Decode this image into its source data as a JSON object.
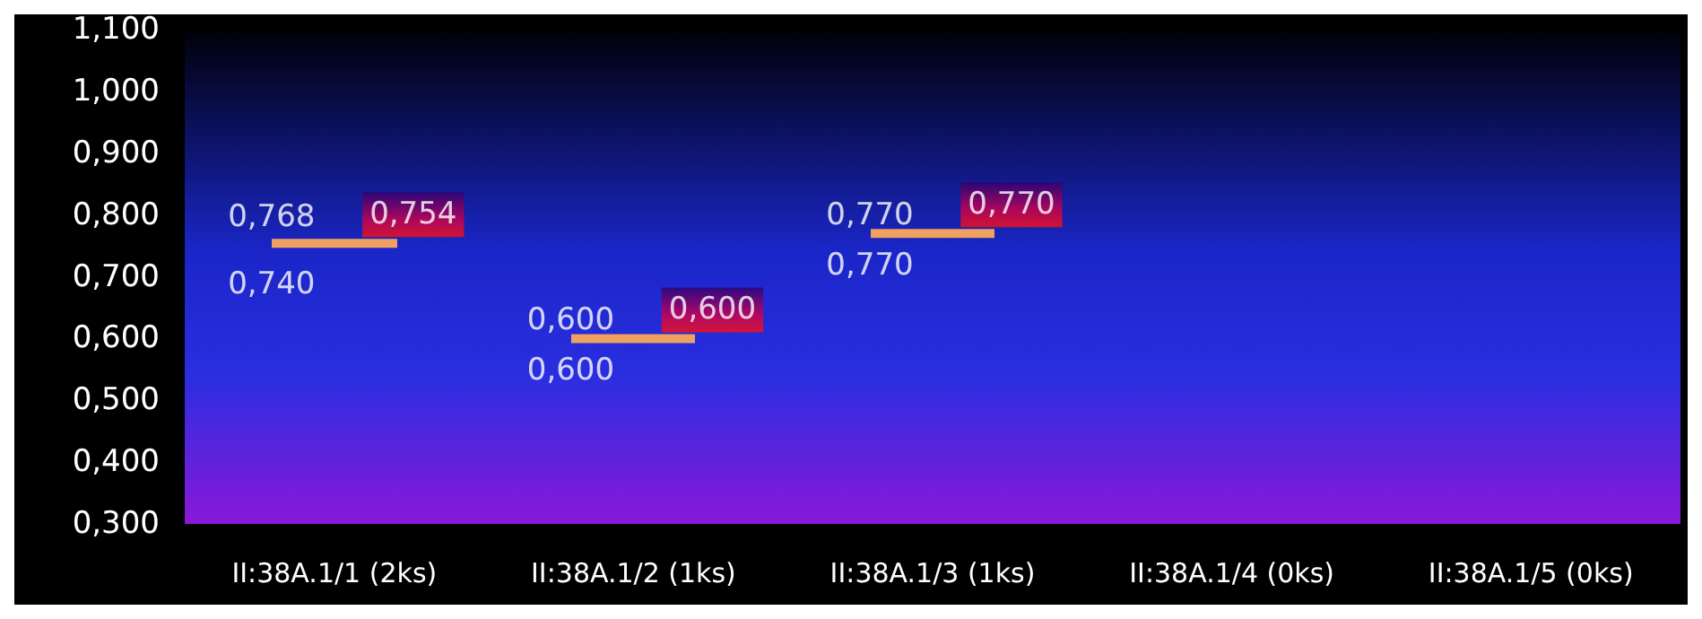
{
  "chart_data": {
    "type": "candlestick",
    "categories": [
      "II:38A.1/1 (2ks)",
      "II:38A.1/2 (1ks)",
      "II:38A.1/3 (1ks)",
      "II:38A.1/4 (0ks)",
      "II:38A.1/5 (0ks)"
    ],
    "ohlc": [
      [
        0.754,
        0.754,
        0.754,
        0.754
      ],
      [
        0.6,
        0.6,
        0.6,
        0.6
      ],
      [
        0.77,
        0.77,
        0.77,
        0.77
      ],
      null,
      null
    ],
    "color": "#f0a060",
    "value_labels": [
      "0,754",
      "0,600",
      "0,770",
      null,
      null
    ],
    "annotations": [
      {
        "text": "0,768",
        "x": "II:38A.1/1 (2ks)",
        "y": 0.768
      },
      {
        "text": "0,740",
        "x": "II:38A.1/1 (2ks)",
        "y": 0.74
      },
      {
        "text": "0,600",
        "x": "II:38A.1/2 (1ks)",
        "y": 0.6
      },
      {
        "text": "0,600",
        "x": "II:38A.1/2 (1ks)",
        "y": 0.6
      },
      {
        "text": "0,770",
        "x": "II:38A.1/3 (1ks)",
        "y": 0.77
      },
      {
        "text": "0,770",
        "x": "II:38A.1/3 (1ks)",
        "y": 0.77
      }
    ],
    "ylim": [
      0.3,
      1.1
    ],
    "yticks": [
      {
        "value": 0.3,
        "label": "0,300"
      },
      {
        "value": 0.4,
        "label": "0,400"
      },
      {
        "value": 0.5,
        "label": "0,500"
      },
      {
        "value": 0.6,
        "label": "0,600"
      },
      {
        "value": 0.7,
        "label": "0,700"
      },
      {
        "value": 0.8,
        "label": "0,800"
      },
      {
        "value": 0.9,
        "label": "0,900"
      },
      {
        "value": 1.0,
        "label": "1,000"
      },
      {
        "value": 1.1,
        "label": "1,100"
      }
    ],
    "grid": false
  }
}
